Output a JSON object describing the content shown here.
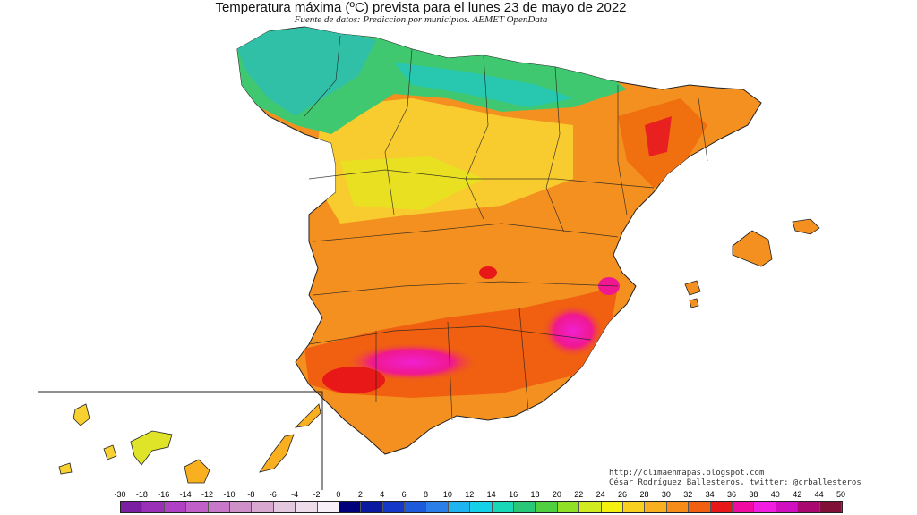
{
  "title": "Temperatura máxima (ºC) prevista para el lunes 23 de mayo de 2022",
  "subtitle": "Fuente de datos: Prediccion por municipios. AEMET OpenData",
  "credits": {
    "url": "http://climaenmapas.blogspot.com",
    "author": "César Rodríguez Ballesteros, twitter: @crballesteros"
  },
  "legend": {
    "labels": [
      "-30",
      "-18",
      "-16",
      "-14",
      "-12",
      "-10",
      "-8",
      "-6",
      "-4",
      "-2",
      "0",
      "2",
      "4",
      "6",
      "8",
      "10",
      "12",
      "14",
      "16",
      "18",
      "20",
      "22",
      "24",
      "26",
      "28",
      "30",
      "32",
      "34",
      "36",
      "38",
      "40",
      "42",
      "44",
      "50"
    ],
    "colors": [
      "#7a1fa2",
      "#9a2fb8",
      "#b040c4",
      "#c060c8",
      "#c878c8",
      "#cf8fc9",
      "#d8a8d0",
      "#e4c8e0",
      "#eedcec",
      "#f8f0f8",
      "#00007a",
      "#0a1aa0",
      "#1638c8",
      "#1e5adc",
      "#2a80e8",
      "#1eb4f0",
      "#14d0e8",
      "#18d8b8",
      "#28c878",
      "#50d040",
      "#90e028",
      "#d0ec20",
      "#f4f010",
      "#f8d020",
      "#f8b020",
      "#f88c18",
      "#f06010",
      "#e81818",
      "#f00ca0",
      "#f01ee0",
      "#d010c0",
      "#a80870",
      "#801038"
    ]
  },
  "regions": {
    "peninsula": "Península Ibérica",
    "islands": "Islas Baleares",
    "canarias": "Islas Canarias"
  }
}
